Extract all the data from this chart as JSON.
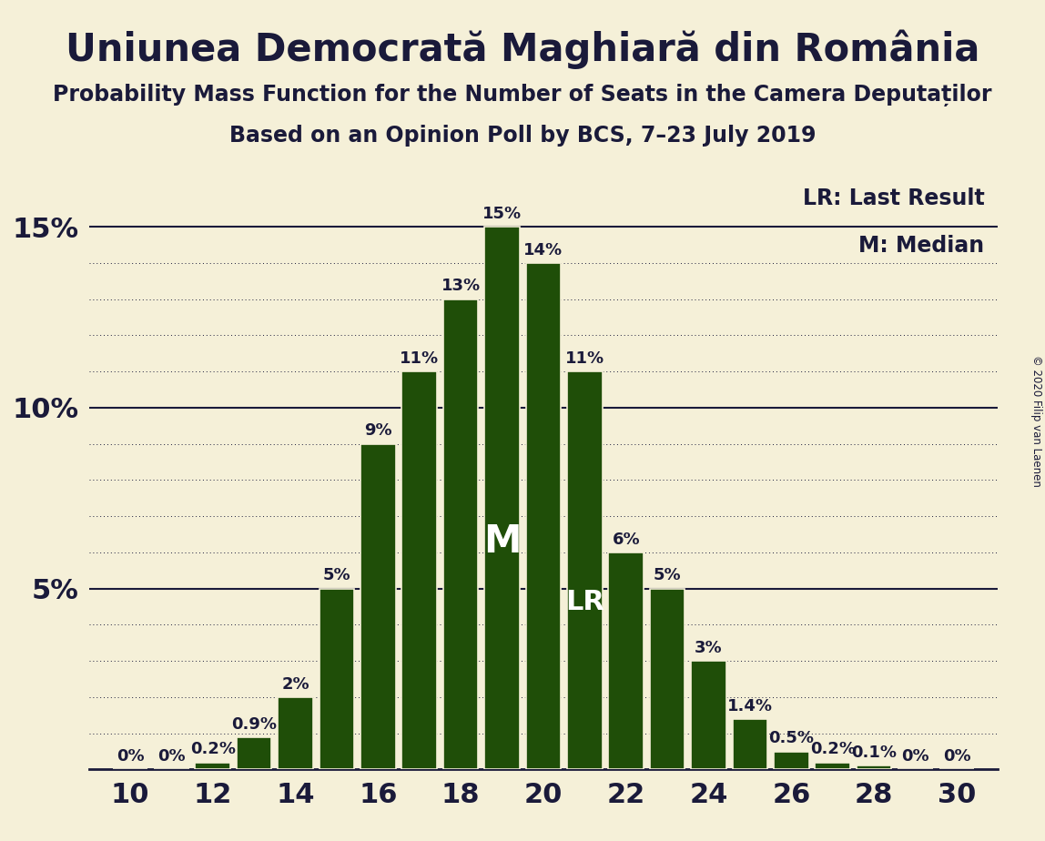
{
  "title": "Uniunea Democrată Maghiară din România",
  "subtitle1": "Probability Mass Function for the Number of Seats in the Camera Deputaților",
  "subtitle2": "Based on an Opinion Poll by BCS, 7–23 July 2019",
  "copyright": "© 2020 Filip van Laenen",
  "seats": [
    10,
    11,
    12,
    13,
    14,
    15,
    16,
    17,
    18,
    19,
    20,
    21,
    22,
    23,
    24,
    25,
    26,
    27,
    28,
    29,
    30
  ],
  "probabilities": [
    0.0,
    0.0,
    0.2,
    0.9,
    2.0,
    5.0,
    9.0,
    11.0,
    13.0,
    15.0,
    14.0,
    11.0,
    6.0,
    5.0,
    3.0,
    1.4,
    0.5,
    0.2,
    0.1,
    0.0,
    0.0
  ],
  "bar_color": "#1f4e08",
  "bar_edge_color": "#f5f0d8",
  "background_color": "#f5f0d8",
  "text_color": "#1a1a3a",
  "grid_color": "#1a1a3a",
  "median_seat": 19,
  "lr_seat": 21,
  "ylim": [
    0,
    16.5
  ],
  "xlim": [
    9.0,
    31.0
  ],
  "xticks": [
    10,
    12,
    14,
    16,
    18,
    20,
    22,
    24,
    26,
    28,
    30
  ],
  "yticks": [
    5,
    10,
    15
  ],
  "title_fontsize": 30,
  "subtitle_fontsize": 17,
  "tick_fontsize": 22,
  "annotation_fontsize": 13,
  "legend_fontsize": 17,
  "copyright_fontsize": 8.5
}
